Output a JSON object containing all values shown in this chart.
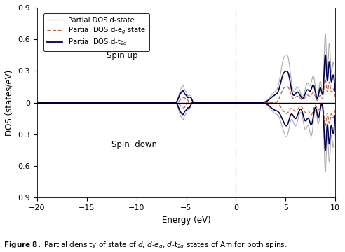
{
  "title": "",
  "xlabel": "Energy (eV)",
  "ylabel": "DOS (states/eV)",
  "xlim": [
    -20,
    10
  ],
  "ylim": [
    -0.9,
    0.9
  ],
  "xticks": [
    -20,
    -15,
    -10,
    -5,
    0,
    5,
    10
  ],
  "yticks": [
    -0.9,
    -0.6,
    -0.3,
    0.0,
    0.3,
    0.6,
    0.9
  ],
  "ytick_labels": [
    "0.9",
    "0.6",
    "0.3",
    "0",
    "0.3",
    "0.6",
    "0.9"
  ],
  "spin_up_label": "Spin up",
  "spin_down_label": "Spin  down",
  "vline_x": 0,
  "col_d": "#aaaaaa",
  "col_eg": "#c06040",
  "col_t2g": "#000050",
  "background_color": "#ffffff",
  "caption": "Figure 8."
}
